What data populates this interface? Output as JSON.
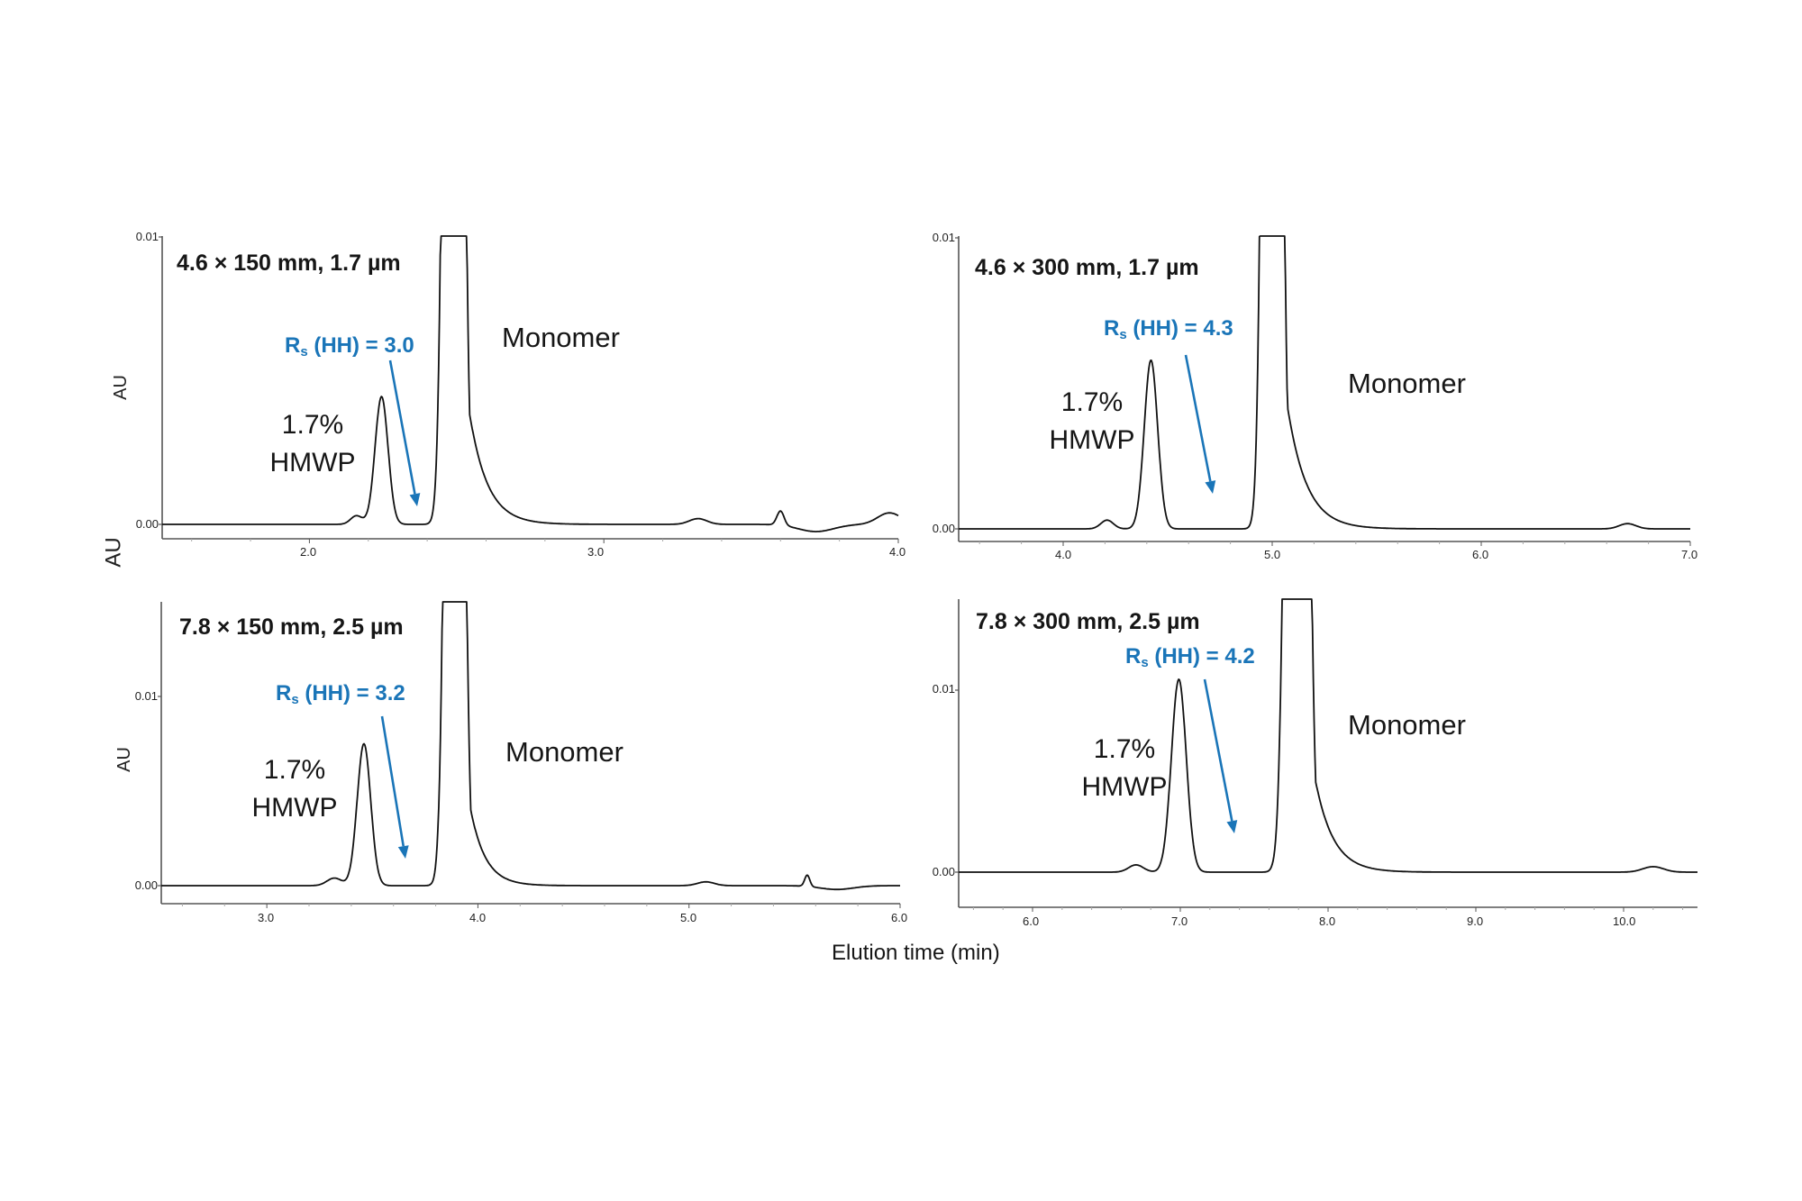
{
  "figure": {
    "x_axis_label": "Elution time (min)",
    "shared_y_label": "AU",
    "accent_color": "#1a75b8",
    "trace_color": "#111111",
    "axis_color": "#555555"
  },
  "panels": [
    {
      "id": "tl",
      "title": "4.6 × 150 mm, 1.7 µm",
      "y_label": "AU",
      "rs_prefix": "R",
      "rs_sub": "s",
      "rs_text": " (HH) = 3.0",
      "hmwp_pct": "1.7%",
      "hmwp_label": "HMWP",
      "monomer_label": "Monomer",
      "y_ticks": [
        "0.01",
        "0.00"
      ],
      "x_ticks": [
        "2.0",
        "3.0",
        "4.0"
      ]
    },
    {
      "id": "tr",
      "title": "4.6 × 300 mm, 1.7 µm",
      "y_label": "",
      "rs_prefix": "R",
      "rs_sub": "s",
      "rs_text": " (HH) = 4.3",
      "hmwp_pct": "1.7%",
      "hmwp_label": "HMWP",
      "monomer_label": "Monomer",
      "y_ticks": [
        "0.01",
        "0.00"
      ],
      "x_ticks": [
        "4.0",
        "5.0",
        "6.0",
        "7.0"
      ]
    },
    {
      "id": "bl",
      "title": "7.8 × 150 mm, 2.5 µm",
      "y_label": "AU",
      "rs_prefix": "R",
      "rs_sub": "s",
      "rs_text": " (HH) = 3.2",
      "hmwp_pct": "1.7%",
      "hmwp_label": "HMWP",
      "monomer_label": "Monomer",
      "y_ticks": [
        "0.01",
        "0.00"
      ],
      "x_ticks": [
        "3.0",
        "4.0",
        "5.0",
        "6.0"
      ]
    },
    {
      "id": "br",
      "title": "7.8 × 300 mm, 2.5 µm",
      "y_label": "",
      "rs_prefix": "R",
      "rs_sub": "s",
      "rs_text": " (HH) = 4.2",
      "hmwp_pct": "1.7%",
      "hmwp_label": "HMWP",
      "monomer_label": "Monomer",
      "y_ticks": [
        "0.01",
        "0.00"
      ],
      "x_ticks": [
        "6.0",
        "7.0",
        "8.0",
        "9.0",
        "10.0"
      ]
    }
  ],
  "chart_data": [
    {
      "type": "line",
      "title": "4.6 × 150 mm, 1.7 µm",
      "xlabel": "Elution time (min)",
      "ylabel": "AU",
      "xlim": [
        1.5,
        4.0
      ],
      "ylim": [
        -0.0005,
        0.01
      ],
      "x_ticks": [
        2.0,
        3.0,
        4.0
      ],
      "y_ticks": [
        0.0,
        0.01
      ],
      "grid": false,
      "annotations": [
        {
          "text": "Rs (HH) = 3.0",
          "color": "#1a75b8",
          "arrow_to_time": 2.38
        },
        {
          "text": "1.7% HMWP",
          "peak_time": 2.24
        },
        {
          "text": "Monomer",
          "peak_time": 2.49
        }
      ],
      "peaks": [
        {
          "name": "shoulder",
          "time": 2.16,
          "height": 0.0003,
          "width": 0.02,
          "tail": 0.0
        },
        {
          "name": "HMWP",
          "time": 2.245,
          "height": 0.00445,
          "width": 0.022,
          "tail": 0.01
        },
        {
          "name": "Monomer",
          "time": 2.49,
          "height": 0.08,
          "width": 0.022,
          "tail": 0.06
        },
        {
          "name": "minor",
          "time": 3.32,
          "height": 0.0002,
          "width": 0.03,
          "tail": 0.0
        },
        {
          "name": "minor",
          "time": 3.6,
          "height": 0.0005,
          "width": 0.012,
          "tail": 0.01
        },
        {
          "name": "dip",
          "time": 3.72,
          "height": -0.00025,
          "width": 0.06,
          "tail": 0.0
        },
        {
          "name": "minor",
          "time": 3.97,
          "height": 0.0004,
          "width": 0.04,
          "tail": 0.0
        }
      ]
    },
    {
      "type": "line",
      "title": "4.6 × 300 mm, 1.7 µm",
      "xlabel": "Elution time (min)",
      "ylabel": "AU",
      "xlim": [
        3.5,
        7.0
      ],
      "ylim": [
        -0.0005,
        0.01
      ],
      "x_ticks": [
        4.0,
        5.0,
        6.0,
        7.0
      ],
      "y_ticks": [
        0.0,
        0.01
      ],
      "grid": false,
      "annotations": [
        {
          "text": "Rs (HH) = 4.3",
          "color": "#1a75b8",
          "arrow_to_time": 4.7
        },
        {
          "text": "1.7% HMWP",
          "peak_time": 4.42
        },
        {
          "text": "Monomer",
          "peak_time": 5.0
        }
      ],
      "peaks": [
        {
          "name": "shoulder",
          "time": 4.21,
          "height": 0.0003,
          "width": 0.03,
          "tail": 0.0
        },
        {
          "name": "HMWP",
          "time": 4.42,
          "height": 0.0058,
          "width": 0.032,
          "tail": 0.015
        },
        {
          "name": "Monomer",
          "time": 5.0,
          "height": 0.08,
          "width": 0.03,
          "tail": 0.09
        },
        {
          "name": "minor",
          "time": 6.7,
          "height": 0.00018,
          "width": 0.04,
          "tail": 0.0
        }
      ]
    },
    {
      "type": "line",
      "title": "7.8 × 150 mm, 2.5 µm",
      "xlabel": "Elution time (min)",
      "ylabel": "AU",
      "xlim": [
        2.5,
        6.0
      ],
      "ylim": [
        -0.001,
        0.0134
      ],
      "x_ticks": [
        3.0,
        4.0,
        5.0,
        6.0
      ],
      "y_ticks": [
        0.0,
        0.01
      ],
      "grid": false,
      "annotations": [
        {
          "text": "Rs (HH) = 3.2",
          "color": "#1a75b8",
          "arrow_to_time": 3.65
        },
        {
          "text": "1.7% HMWP",
          "peak_time": 3.46
        },
        {
          "text": "Monomer",
          "peak_time": 3.89
        }
      ],
      "peaks": [
        {
          "name": "shoulder",
          "time": 3.32,
          "height": 0.0004,
          "width": 0.035,
          "tail": 0.0
        },
        {
          "name": "HMWP",
          "time": 3.46,
          "height": 0.0075,
          "width": 0.032,
          "tail": 0.02
        },
        {
          "name": "Monomer",
          "time": 3.89,
          "height": 0.1,
          "width": 0.03,
          "tail": 0.07
        },
        {
          "name": "minor",
          "time": 5.08,
          "height": 0.0002,
          "width": 0.04,
          "tail": 0.0
        },
        {
          "name": "minor",
          "time": 5.56,
          "height": 0.0006,
          "width": 0.012,
          "tail": 0.01
        },
        {
          "name": "dip",
          "time": 5.7,
          "height": -0.0002,
          "width": 0.08,
          "tail": 0.0
        }
      ]
    },
    {
      "type": "line",
      "title": "7.8 × 300 mm, 2.5 µm",
      "xlabel": "Elution time (min)",
      "ylabel": "AU",
      "xlim": [
        5.5,
        10.5
      ],
      "ylim": [
        -0.002,
        0.0149
      ],
      "x_ticks": [
        6.0,
        7.0,
        8.0,
        9.0,
        10.0
      ],
      "y_ticks": [
        0.0,
        0.01
      ],
      "grid": false,
      "annotations": [
        {
          "text": "Rs (HH) = 4.2",
          "color": "#1a75b8",
          "arrow_to_time": 7.4
        },
        {
          "text": "1.7% HMWP",
          "peak_time": 6.99
        },
        {
          "text": "Monomer",
          "peak_time": 7.79
        }
      ],
      "peaks": [
        {
          "name": "shoulder",
          "time": 6.7,
          "height": 0.0004,
          "width": 0.05,
          "tail": 0.0
        },
        {
          "name": "HMWP",
          "time": 6.99,
          "height": 0.0106,
          "width": 0.05,
          "tail": 0.03
        },
        {
          "name": "Monomer",
          "time": 7.79,
          "height": 0.12,
          "width": 0.05,
          "tail": 0.12
        },
        {
          "name": "minor",
          "time": 10.2,
          "height": 0.0003,
          "width": 0.07,
          "tail": 0.0
        }
      ]
    }
  ]
}
